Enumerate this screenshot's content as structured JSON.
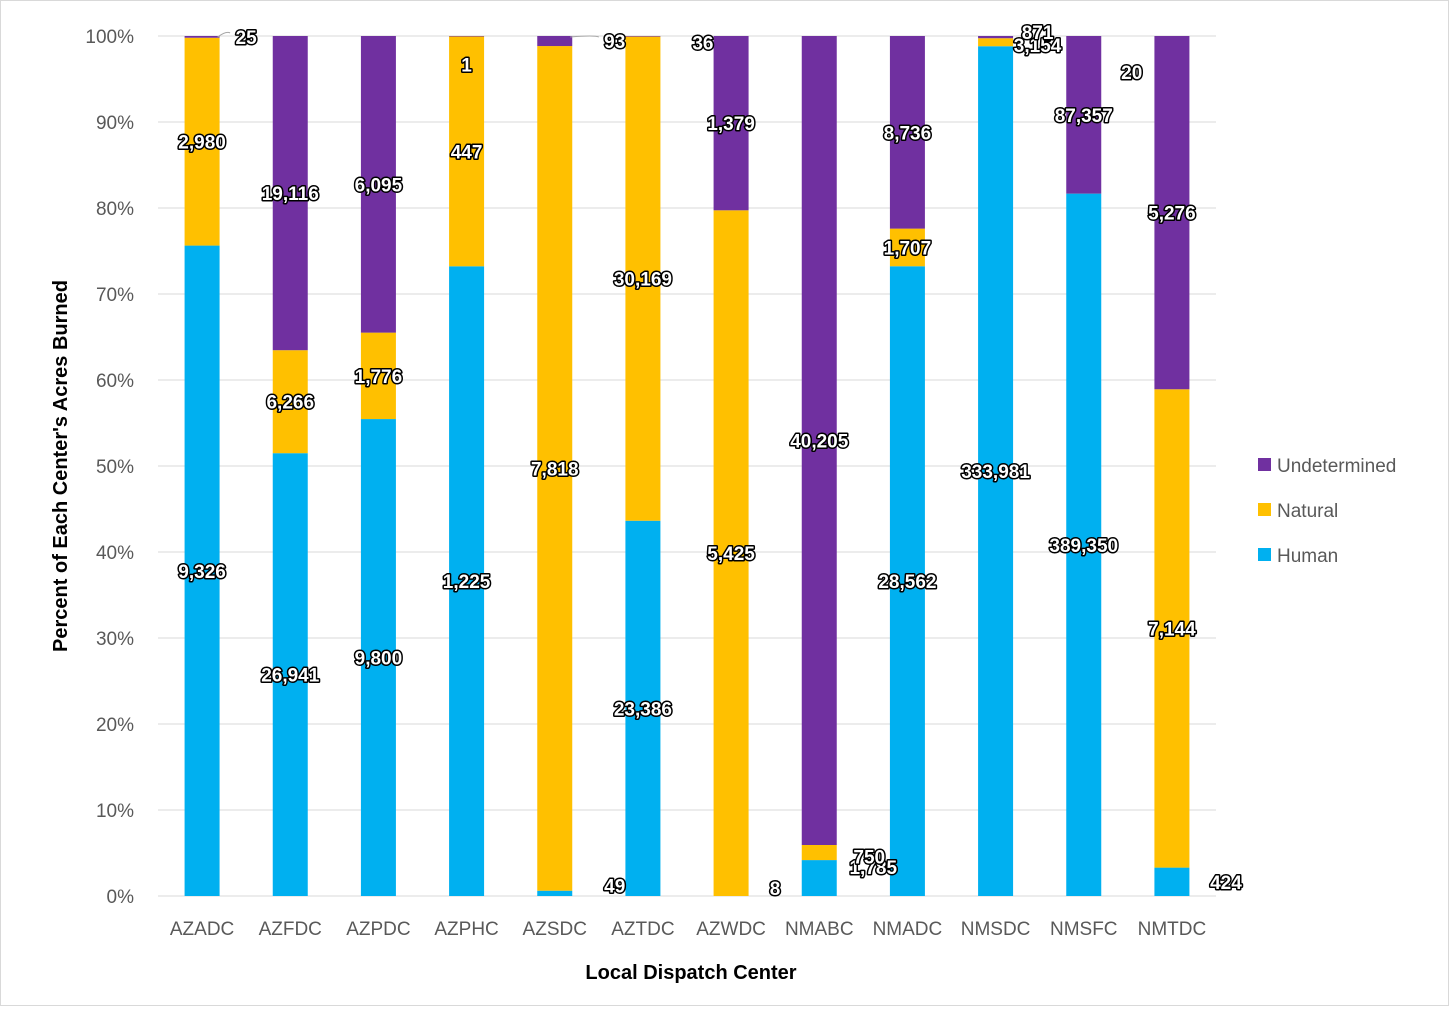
{
  "chart_data": {
    "type": "bar",
    "stacked": "percent",
    "xlabel": "Local Dispatch Center",
    "ylabel": "Percent of Each Center's Acres Burned",
    "ylim": [
      0,
      100
    ],
    "y_ticks": [
      "0%",
      "10%",
      "20%",
      "30%",
      "40%",
      "50%",
      "60%",
      "70%",
      "80%",
      "90%",
      "100%"
    ],
    "grid": true,
    "legend_position": "right",
    "categories": [
      "AZADC",
      "AZFDC",
      "AZPDC",
      "AZPHC",
      "AZSDC",
      "AZTDC",
      "AZWDC",
      "NMABC",
      "NMADC",
      "NMSDC",
      "NMSFC",
      "NMTDC"
    ],
    "series": [
      {
        "name": "Human",
        "color": "#00b0f0",
        "values": [
          9326,
          26941,
          9800,
          1225,
          49,
          23386,
          0,
          1785,
          28562,
          333981,
          389350,
          424
        ],
        "labels": [
          "9,326",
          "26,941",
          "9,800",
          "1,225",
          "49",
          "23,386",
          "",
          "1,785",
          "28,562",
          "333,981",
          "389,350",
          "424"
        ]
      },
      {
        "name": "Natural",
        "color": "#ffc000",
        "values": [
          2980,
          6266,
          1776,
          447,
          7818,
          30169,
          5425,
          750,
          1707,
          3154,
          20,
          7144
        ],
        "labels": [
          "2,980",
          "6,266",
          "1,776",
          "447",
          "7,818",
          "30,169",
          "5,425",
          "750",
          "1,707",
          "3,154",
          "20",
          "7,144"
        ]
      },
      {
        "name": "Undetermined",
        "color": "#7030a0",
        "values": [
          25,
          19116,
          6095,
          1,
          93,
          36,
          1379,
          40205,
          8736,
          871,
          87357,
          5276
        ],
        "labels": [
          "25",
          "19,116",
          "6,095",
          "1",
          "93",
          "36",
          "1,379",
          "40,205",
          "8,736",
          "871",
          "87,357",
          "5,276"
        ]
      }
    ],
    "extra_labels": [
      "8"
    ],
    "legend": [
      "Undetermined",
      "Natural",
      "Human"
    ]
  }
}
